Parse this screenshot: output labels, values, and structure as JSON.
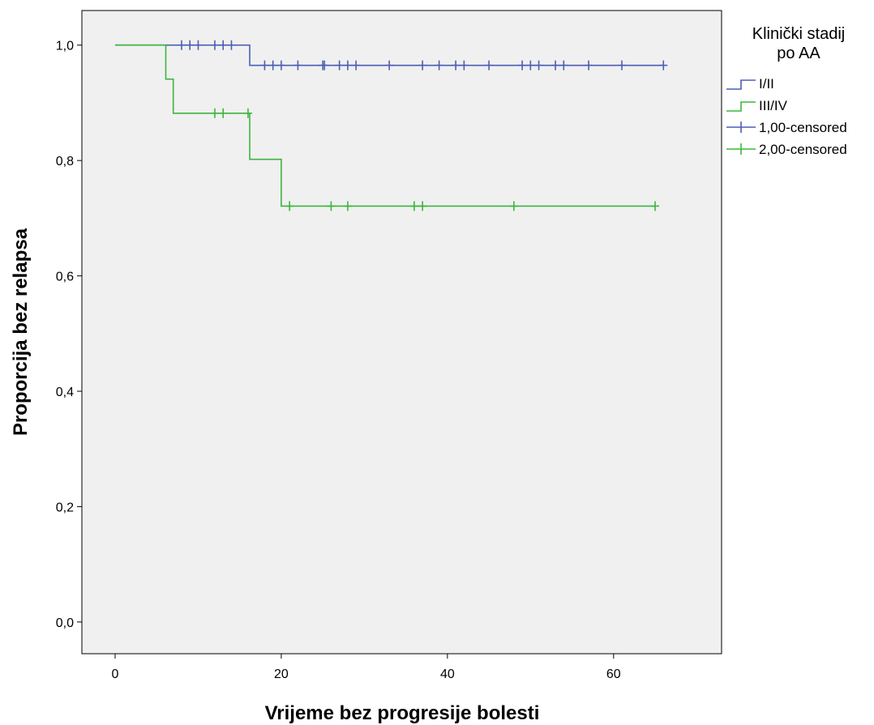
{
  "chart_data": {
    "type": "line",
    "subtype": "kaplan-meier survival curve",
    "xlabel": "Vrijeme bez progresije bolesti",
    "ylabel": "Proporcija bez relapsa",
    "xlim": [
      -4,
      73
    ],
    "ylim": [
      -0.055,
      1.06
    ],
    "xticks": [
      0,
      20,
      40,
      60
    ],
    "xtick_labels": [
      "0",
      "20",
      "40",
      "60"
    ],
    "yticks": [
      0.0,
      0.2,
      0.4,
      0.6,
      0.8,
      1.0
    ],
    "ytick_labels": [
      "0,0",
      "0,2",
      "0,4",
      "0,6",
      "0,8",
      "1,0"
    ],
    "grid": false,
    "plot_background": "#f0f0f0",
    "legend": {
      "title_lines": [
        "Klinički stadij",
        "po AA"
      ],
      "placement": "right, outside plot",
      "entries": [
        {
          "label": "I/II",
          "kind": "step",
          "color": "#4a5fb5"
        },
        {
          "label": "III/IV",
          "kind": "step",
          "color": "#3db53d"
        },
        {
          "label": "1,00-censored",
          "kind": "censor",
          "color": "#4a5fb5"
        },
        {
          "label": "2,00-censored",
          "kind": "censor",
          "color": "#3db53d"
        }
      ]
    },
    "series": [
      {
        "name": "I/II",
        "color": "#4a5fb5",
        "steps": [
          [
            0,
            1.0
          ],
          [
            16.2,
            1.0
          ],
          [
            16.2,
            0.965
          ],
          [
            66,
            0.965
          ]
        ],
        "censored": [
          [
            8,
            1.0
          ],
          [
            9,
            1.0
          ],
          [
            10,
            1.0
          ],
          [
            12,
            1.0
          ],
          [
            13,
            1.0
          ],
          [
            14,
            1.0
          ],
          [
            18,
            0.965
          ],
          [
            19,
            0.965
          ],
          [
            20,
            0.965
          ],
          [
            22,
            0.965
          ],
          [
            25,
            0.965
          ],
          [
            25.2,
            0.965
          ],
          [
            27,
            0.965
          ],
          [
            28,
            0.965
          ],
          [
            29,
            0.965
          ],
          [
            33,
            0.965
          ],
          [
            37,
            0.965
          ],
          [
            39,
            0.965
          ],
          [
            41,
            0.965
          ],
          [
            42,
            0.965
          ],
          [
            45,
            0.965
          ],
          [
            49,
            0.965
          ],
          [
            50,
            0.965
          ],
          [
            51,
            0.965
          ],
          [
            53,
            0.965
          ],
          [
            54,
            0.965
          ],
          [
            57,
            0.965
          ],
          [
            61,
            0.965
          ],
          [
            66,
            0.965
          ]
        ]
      },
      {
        "name": "III/IV",
        "color": "#3db53d",
        "steps": [
          [
            0,
            1.0
          ],
          [
            6.1,
            1.0
          ],
          [
            6.1,
            0.941
          ],
          [
            7,
            0.941
          ],
          [
            7,
            0.882
          ],
          [
            16.2,
            0.882
          ],
          [
            16.2,
            0.802
          ],
          [
            20,
            0.802
          ],
          [
            20,
            0.721
          ],
          [
            65,
            0.721
          ]
        ],
        "censored": [
          [
            12,
            0.882
          ],
          [
            13,
            0.882
          ],
          [
            16,
            0.882
          ],
          [
            21,
            0.721
          ],
          [
            26,
            0.721
          ],
          [
            28,
            0.721
          ],
          [
            36,
            0.721
          ],
          [
            37,
            0.721
          ],
          [
            48,
            0.721
          ],
          [
            65,
            0.721
          ]
        ]
      }
    ]
  }
}
